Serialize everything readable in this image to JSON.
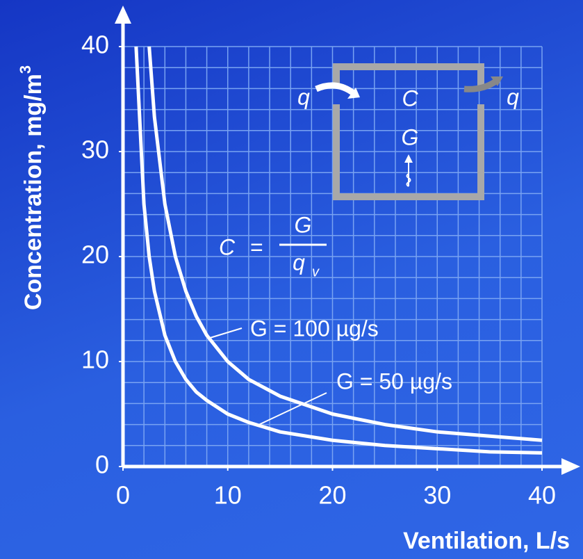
{
  "chart_data": {
    "type": "line",
    "x_label": "Ventilation, L/s",
    "y_label": "Concentration, mg/m",
    "y_label_sup": "3",
    "x": [
      1.25,
      2,
      2.5,
      3,
      4,
      5,
      6,
      7,
      8,
      10,
      12,
      15,
      20,
      25,
      30,
      35,
      40
    ],
    "series": [
      {
        "name": "G = 100 µg/s",
        "color": "#ffffff",
        "values": [
          null,
          null,
          40,
          33.3,
          25,
          20,
          16.7,
          14.3,
          12.5,
          10,
          8.3,
          6.7,
          5,
          4,
          3.3,
          2.9,
          2.5
        ]
      },
      {
        "name": "G = 50 µg/s",
        "color": "#ffffff",
        "values": [
          40,
          25,
          20,
          16.7,
          12.5,
          10,
          8.3,
          7.1,
          6.3,
          5,
          4.2,
          3.3,
          2.5,
          2,
          1.7,
          1.4,
          1.3
        ]
      }
    ],
    "xlim": [
      0,
      40
    ],
    "ylim": [
      0,
      40
    ],
    "xticks": [
      0,
      10,
      20,
      30,
      40
    ],
    "yticks": [
      0,
      10,
      20,
      30,
      40
    ],
    "xgrid": [
      2,
      4,
      6,
      8,
      10,
      12,
      14,
      16,
      18,
      20,
      22,
      24,
      26,
      28,
      30,
      32,
      34,
      36,
      38,
      40
    ],
    "ygrid": [
      2,
      4,
      6,
      8,
      10,
      12,
      14,
      16,
      18,
      20,
      22,
      24,
      26,
      28,
      30,
      32,
      34,
      36,
      38,
      40
    ],
    "grid": true,
    "formula": {
      "lhs": "C",
      "equals": "=",
      "numerator": "G",
      "denominator": "q",
      "denominator_sub": "v"
    },
    "diagram": {
      "inflow": "q",
      "concentration": "C",
      "source": "G",
      "outflow": "q"
    }
  }
}
